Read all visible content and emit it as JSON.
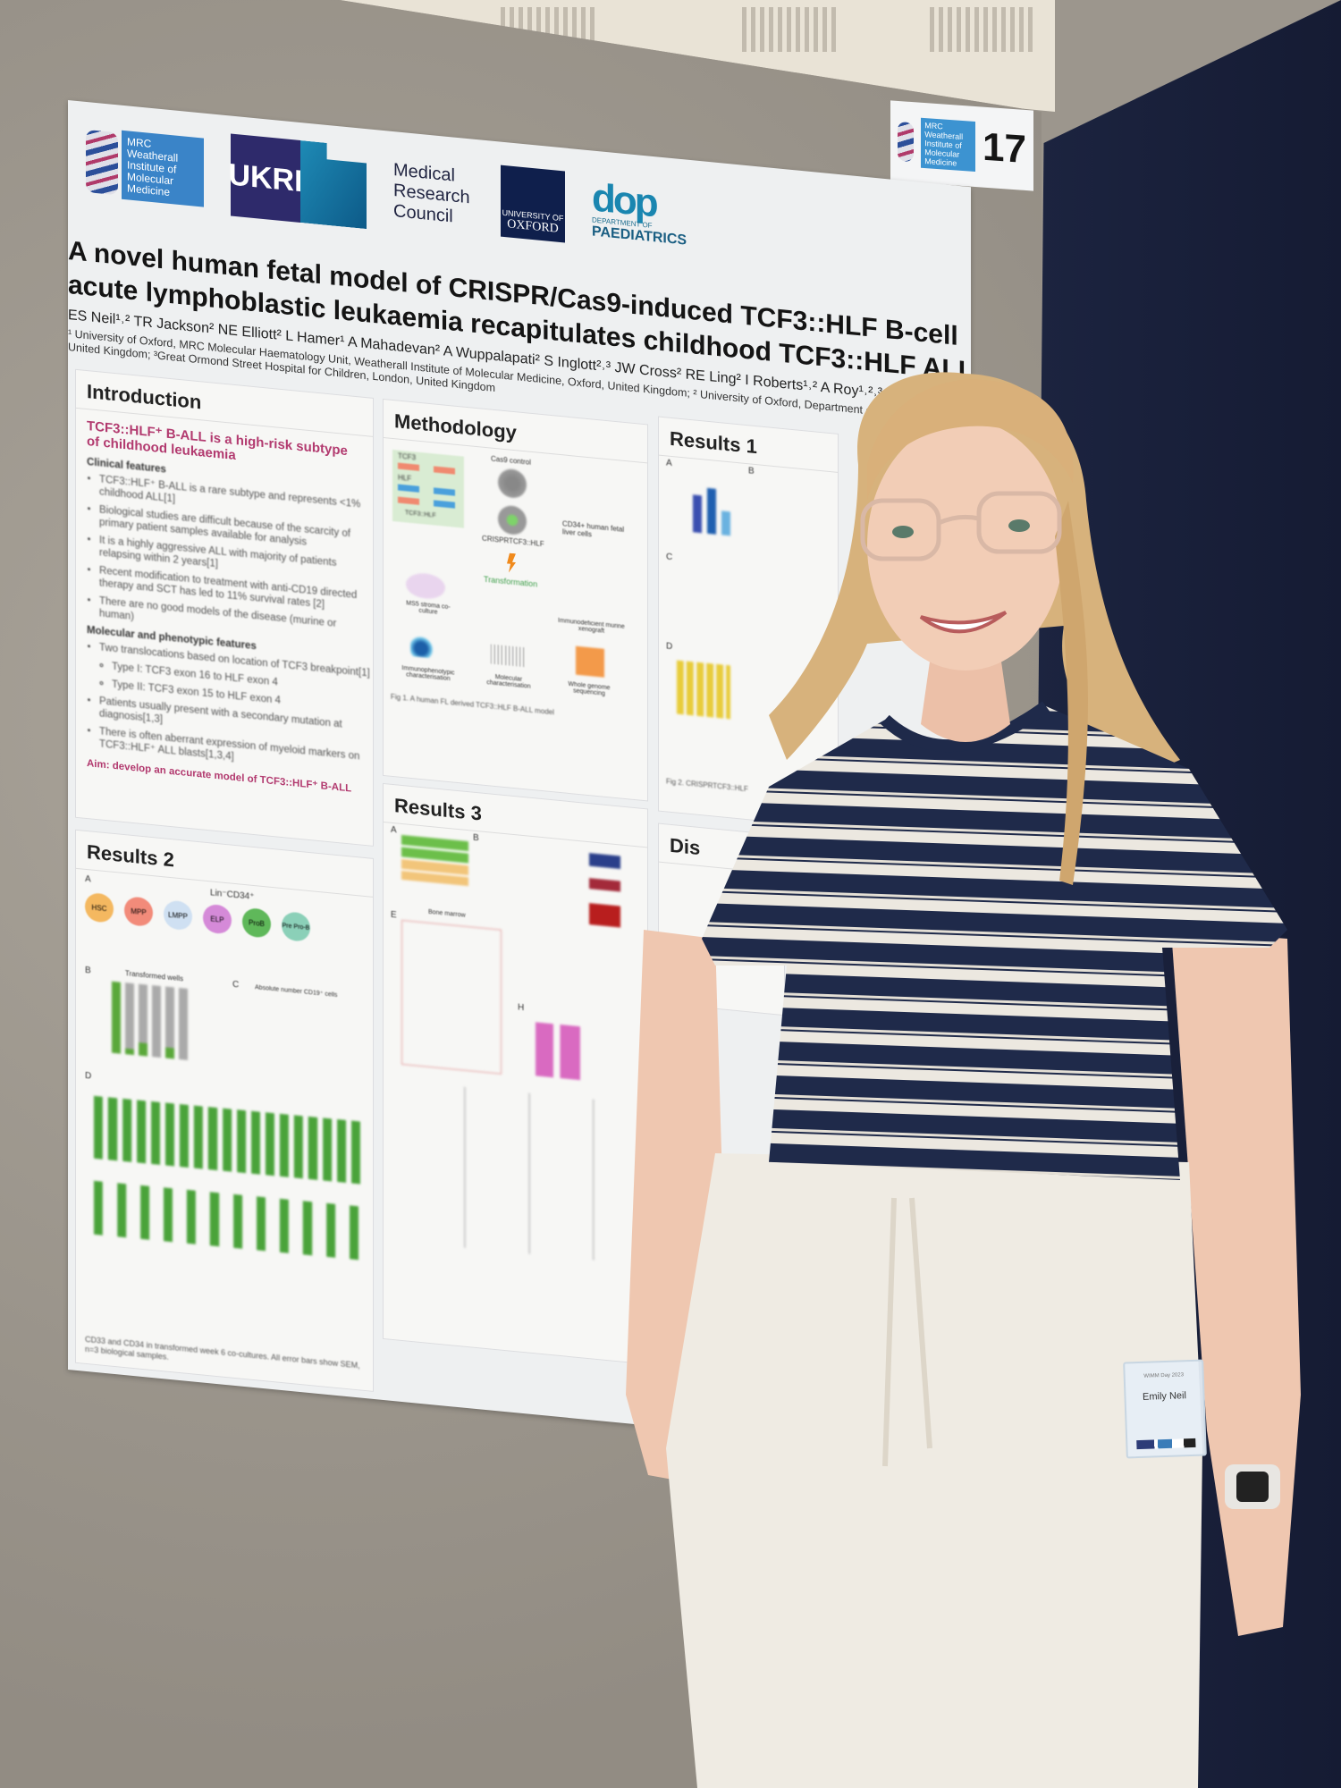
{
  "room": {
    "booth_number": "17",
    "booth_logo_text": "MRC Weatherall Institute of Molecular Medicine"
  },
  "poster": {
    "logos": {
      "mrc_wimm": "MRC Weatherall Institute of Molecular Medicine",
      "ukri": "UKRI",
      "mrc": "Medical Research Council",
      "oxford_small": "UNIVERSITY OF",
      "oxford": "OXFORD",
      "dop_mark": "dop",
      "dop_small": "DEPARTMENT OF",
      "dop_name": "PAEDIATRICS"
    },
    "title_line1": "A novel human fetal model of CRISPR/Cas9-induced TCF3::HLF B-cell",
    "title_line2": "acute lymphoblastic leukaemia recapitulates childhood TCF3::HLF ALL",
    "authors": "ES Neil¹˒² TR Jackson² NE Elliott² L Hamer¹ A Mahadevan² A Wuppalapati² S Inglott²˒³ JW Cross² RE Ling² I Roberts¹˒² A Roy¹˒²˒³",
    "affiliations": "¹ University of Oxford, MRC Molecular Haematology Unit, Weatherall Institute of Molecular Medicine, Oxford, United Kingdom; ² University of Oxford, Department of Paediatrics, United Kingdom; ³Great Ormond Street Hospital for Children, London, United Kingdom",
    "introduction": {
      "heading": "Introduction",
      "headline": "TCF3::HLF⁺ B-ALL is a high-risk subtype of childhood leukaemia",
      "clinical_title": "Clinical features",
      "clinical": [
        "TCF3::HLF⁺ B-ALL is a rare subtype and represents <1% childhood ALL[1]",
        "Biological studies are difficult because of the scarcity of primary patient samples available for analysis",
        "It is a highly aggressive ALL with majority of patients relapsing within 2 years[1]",
        "Recent modification to treatment with anti-CD19 directed therapy and SCT has led to 11% survival rates [2]",
        "There are no good models of the disease (murine or human)"
      ],
      "molecular_title": "Molecular and phenotypic features",
      "molecular": [
        "Two translocations based on location of TCF3 breakpoint[1]",
        "Type I: TCF3 exon 16 to HLF exon 4",
        "Type II: TCF3 exon 15 to HLF exon 4",
        "Patients usually present with a secondary mutation at diagnosis[1,3]",
        "There is often aberrant expression of myeloid markers on TCF3::HLF⁺ ALL blasts[1,3,4]"
      ],
      "aim": "Aim: develop an accurate model of TCF3::HLF⁺ B-ALL"
    },
    "methodology": {
      "heading": "Methodology",
      "labels": {
        "tcf3": "TCF3",
        "hlf": "HLF",
        "fusion": "TCF3::HLF",
        "cas9": "Cas9 control",
        "crispr": "CRISPRTCF3::HLF",
        "cells": "CD34+ human fetal liver cells",
        "transformation": "Transformation",
        "ms5": "MS5 stroma co-culture",
        "xeno": "Immunodeficient murine xenograft",
        "immuno": "Immunophenotypic characterisation",
        "molecular": "Molecular characterisation",
        "wgs": "Whole genome sequencing"
      },
      "caption": "Fig 1. A human FL derived TCF3::HLF B-ALL model"
    },
    "results1": {
      "heading": "Results 1",
      "panels": [
        "A",
        "B",
        "C",
        "D"
      ],
      "caption": "Fig 2. CRISPRTCF3::HLF"
    },
    "results2": {
      "heading": "Results 2",
      "lineage_label": "Lin⁻CD34⁺",
      "stages": [
        "HSC",
        "MPP",
        "LMPP",
        "ELP",
        "ProB",
        "Pre Pro-B"
      ],
      "panels": [
        "A",
        "B",
        "C",
        "D"
      ],
      "b_title": "Transformed wells",
      "c_title": "Absolute number CD19⁺ cells",
      "caption_end": "CD33 and CD34 in transformed week 6 co-cultures. All error bars show SEM, n=3 biological samples."
    },
    "results3": {
      "heading": "Results 3",
      "panels": [
        "A",
        "B",
        "E",
        "H"
      ],
      "bm_label": "Bone marrow"
    },
    "discussion": {
      "heading_partial": "Dis"
    }
  },
  "name_badge": {
    "event": "WIMM Day 2023",
    "name": "Emily Neil"
  },
  "colors": {
    "poster_accent": "#b23a6f",
    "wall": "#a39d93",
    "panel": "#1c2440",
    "stripe_navy": "#1f2a4a",
    "trousers": "#efebe3",
    "hair": "#d7b27c"
  }
}
